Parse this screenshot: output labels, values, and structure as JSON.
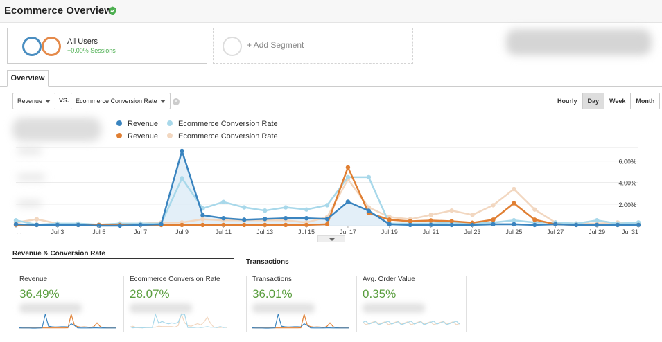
{
  "header": {
    "title": "Ecommerce Overview"
  },
  "segments": [
    {
      "name": "All Users",
      "sub": "+0.00% Sessions"
    }
  ],
  "add_segment": "+ Add Segment",
  "tabs": {
    "overview": "Overview"
  },
  "controls": {
    "metric1": "Revenue",
    "vs": "VS.",
    "metric2": "Ecommerce Conversion Rate",
    "granularity": [
      "Hourly",
      "Day",
      "Week",
      "Month"
    ],
    "active_granularity": "Day"
  },
  "legend": [
    {
      "label": "Revenue",
      "color": "#3a84bf"
    },
    {
      "label": "Ecommerce Conversion Rate",
      "color": "#a8d8ea"
    },
    {
      "label": "Revenue",
      "color": "#e07f33"
    },
    {
      "label": "Ecommerce Conversion Rate",
      "color": "#f2d7c0"
    }
  ],
  "colors": {
    "revenue_blue": "#3a84bf",
    "conv_blue": "#a8d8ea",
    "revenue_orange": "#e07f33",
    "conv_orange": "#f2d7c0",
    "positive_green": "#5a9e3e"
  },
  "chart_data": {
    "type": "line",
    "x": [
      "Jul 1",
      "Jul 2",
      "Jul 3",
      "Jul 4",
      "Jul 5",
      "Jul 6",
      "Jul 7",
      "Jul 8",
      "Jul 9",
      "Jul 10",
      "Jul 11",
      "Jul 12",
      "Jul 13",
      "Jul 14",
      "Jul 15",
      "Jul 16",
      "Jul 17",
      "Jul 18",
      "Jul 19",
      "Jul 20",
      "Jul 21",
      "Jul 22",
      "Jul 23",
      "Jul 24",
      "Jul 25",
      "Jul 26",
      "Jul 27",
      "Jul 28",
      "Jul 29",
      "Jul 30",
      "Jul 31"
    ],
    "x_tick_labels": [
      "…",
      "Jul 3",
      "Jul 5",
      "Jul 7",
      "Jul 9",
      "Jul 11",
      "Jul 13",
      "Jul 15",
      "Jul 17",
      "Jul 19",
      "Jul 21",
      "Jul 23",
      "Jul 25",
      "Jul 27",
      "Jul 29",
      "Jul 31"
    ],
    "right_axis_labels": [
      "6.00%",
      "4.00%",
      "2.00%"
    ],
    "right_axis_values": [
      6,
      4,
      2
    ],
    "right_ylim": [
      0,
      7
    ],
    "left_ylim": [
      0,
      100
    ],
    "series": [
      {
        "name": "Revenue",
        "axis": "left",
        "color": "#3a84bf",
        "values": [
          2,
          1,
          1,
          1,
          0,
          0,
          1,
          2,
          100,
          14,
          10,
          8,
          9,
          10,
          10,
          9,
          32,
          20,
          2,
          1,
          1,
          1,
          1,
          2,
          2,
          1,
          2,
          1,
          1,
          1,
          1
        ]
      },
      {
        "name": "Ecommerce Conversion Rate",
        "axis": "right",
        "color": "#a8d8ea",
        "values": [
          0.5,
          0.1,
          0.2,
          0.2,
          0.1,
          0.2,
          0.2,
          0.2,
          4.4,
          1.6,
          2.2,
          1.7,
          1.4,
          1.7,
          1.5,
          1.9,
          4.5,
          4.5,
          0.2,
          0.2,
          0.2,
          0.3,
          0.2,
          0.3,
          0.5,
          0.3,
          0.3,
          0.2,
          0.5,
          0.2,
          0.3
        ]
      },
      {
        "name": "Revenue",
        "axis": "left",
        "color": "#e07f33",
        "values": [
          1,
          1,
          1,
          1,
          1,
          1,
          1,
          1,
          1,
          1,
          1,
          1,
          1,
          1,
          1,
          2,
          78,
          17,
          8,
          6,
          7,
          6,
          4,
          8,
          30,
          8,
          2,
          1,
          1,
          1,
          1
        ]
      },
      {
        "name": "Ecommerce Conversion Rate",
        "axis": "right",
        "color": "#f2d7c0",
        "values": [
          0.3,
          0.6,
          0.2,
          0.1,
          0.1,
          0.2,
          0.2,
          0.3,
          0.3,
          0.6,
          0.5,
          0.5,
          0.5,
          0.5,
          0.3,
          0.8,
          4.3,
          1.7,
          0.8,
          0.6,
          1.0,
          1.4,
          1.0,
          1.9,
          3.4,
          1.5,
          0.3,
          0.2,
          0.2,
          0.3,
          0.2
        ]
      }
    ]
  },
  "sections": {
    "revenue_conv": "Revenue & Conversion Rate",
    "transactions": "Transactions"
  },
  "metrics": [
    {
      "label": "Revenue",
      "value": "36.49%"
    },
    {
      "label": "Ecommerce Conversion Rate",
      "value": "28.07%"
    },
    {
      "label": "Transactions",
      "value": "36.01%"
    },
    {
      "label": "Avg. Order Value",
      "value": "0.35%"
    }
  ]
}
